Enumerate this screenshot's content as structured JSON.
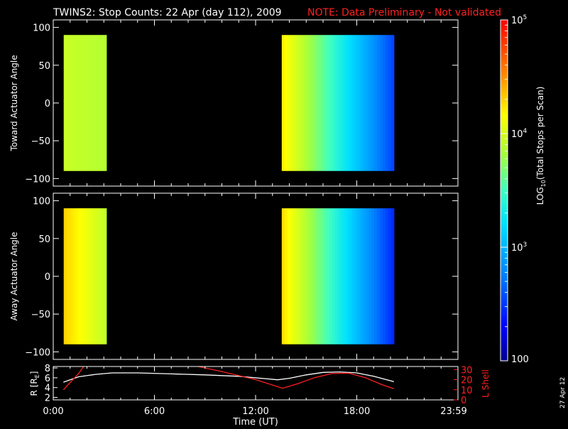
{
  "title": {
    "main": "TWINS2: Stop Counts: 22 Apr (day 112), 2009",
    "note": "NOTE: Data Preliminary - Not validated"
  },
  "footer_date": "27 Apr 12",
  "colors": {
    "background": "#000000",
    "axes": "#ffffff",
    "note": "#ff2020",
    "r_line": "#ffffff",
    "l_line": "#ff2020"
  },
  "colorbar": {
    "label_prefix": "LOG",
    "label_sub": "10",
    "label_suffix": "(Total Stops per Scan)",
    "ticks": [
      {
        "value": 100,
        "mant": "100",
        "exp": ""
      },
      {
        "value": 1000,
        "mant": "10",
        "exp": "3"
      },
      {
        "value": 10000,
        "mant": "10",
        "exp": "4"
      },
      {
        "value": 100000,
        "mant": "10",
        "exp": "5"
      }
    ],
    "range": [
      100,
      100000
    ],
    "scale": "log"
  },
  "chart_data": [
    {
      "type": "heatmap",
      "id": "toward",
      "ylabel": "Toward Actuator Angle",
      "xlim": [
        0,
        24
      ],
      "ylim": [
        -110,
        110
      ],
      "yticks": [
        100,
        50,
        0,
        -50,
        -100
      ],
      "ytick_labels": [
        "100",
        "50",
        "0",
        "−50",
        "−100"
      ],
      "blocks": [
        {
          "start": 0.62,
          "end": 3.15,
          "log_start": 3.95,
          "log_end": 3.88
        },
        {
          "start": 13.55,
          "end": 20.2,
          "log_start": 4.2,
          "log_end": 2.55
        }
      ]
    },
    {
      "type": "heatmap",
      "id": "away",
      "ylabel": "Away Actuator Angle",
      "xlim": [
        0,
        24
      ],
      "ylim": [
        -110,
        110
      ],
      "yticks": [
        100,
        50,
        0,
        -50,
        -100
      ],
      "ytick_labels": [
        "100",
        "50",
        "0",
        "−50",
        "−100"
      ],
      "blocks": [
        {
          "start": 0.62,
          "end": 3.15,
          "log_start": 4.3,
          "log_end": 3.92
        },
        {
          "start": 13.55,
          "end": 20.2,
          "log_start": 4.25,
          "log_end": 2.45
        }
      ]
    },
    {
      "type": "line",
      "id": "orbit",
      "xlabel": "Time (UT)",
      "ylabel_left": "R [R",
      "ylabel_left_sub": "E",
      "ylabel_left_suffix": "]",
      "ylabel_right": "L Shell",
      "xlim": [
        0,
        24
      ],
      "xticks": [
        0,
        6,
        12,
        18,
        24
      ],
      "xtick_labels": [
        "0:00",
        "6:00",
        "12:00",
        "18:00",
        "23:59"
      ],
      "ylim_left": [
        1.5,
        8.3
      ],
      "yticks_left": [
        8,
        6,
        4,
        2
      ],
      "ytick_labels_left": [
        "8",
        "6",
        "4",
        "2"
      ],
      "ylim_right": [
        0,
        33
      ],
      "yticks_right": [
        30,
        20,
        10,
        0
      ],
      "ytick_labels_right": [
        "30",
        "20",
        "10",
        "0"
      ],
      "series": [
        {
          "axis": "left",
          "x": [
            0.6,
            1.5,
            2.5,
            3.5,
            5,
            7,
            9,
            11,
            13.3,
            14,
            15,
            16,
            17,
            18,
            19,
            20.2
          ],
          "y": [
            5.1,
            6.2,
            6.7,
            7.0,
            7.0,
            6.8,
            6.6,
            6.3,
            5.6,
            5.9,
            6.6,
            7.1,
            7.2,
            7.0,
            6.3,
            5.2
          ]
        },
        {
          "axis": "right",
          "x": [
            0.6,
            1.5,
            1.8
          ],
          "y": [
            10.0,
            26.0,
            33.0
          ]
        },
        {
          "axis": "right",
          "x": [
            8.6,
            10,
            12,
            13.6,
            14.5,
            15.5,
            16.5,
            17.5,
            18.5,
            19.5,
            20.2
          ],
          "y": [
            33.0,
            28.0,
            20.0,
            11.5,
            16.0,
            22.0,
            26.0,
            26.5,
            22.0,
            15.0,
            11.0
          ]
        }
      ]
    }
  ]
}
